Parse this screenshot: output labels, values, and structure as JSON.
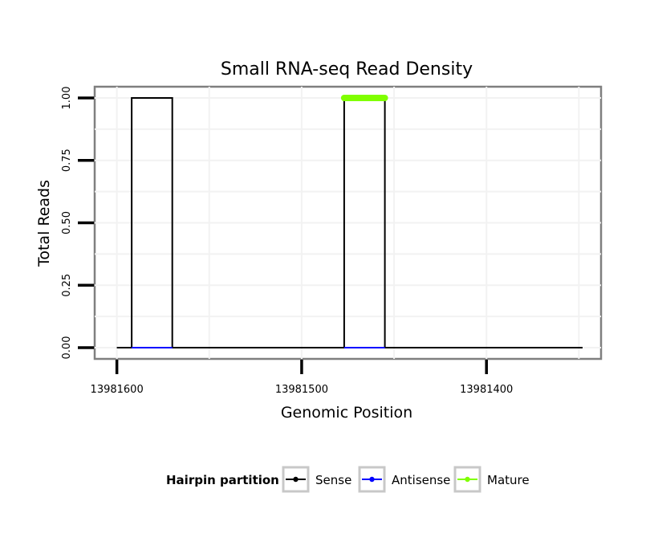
{
  "chart_data": {
    "type": "line",
    "title": "Small RNA-seq Read Density",
    "xlabel": "Genomic Position",
    "ylabel": "Total Reads",
    "x_reversed": true,
    "xlim": [
      13981612,
      13981338
    ],
    "ylim": [
      -0.045,
      1.045
    ],
    "x_ticks": [
      13981600,
      13981500,
      13981400
    ],
    "x_tick_labels": [
      "13981600",
      "13981500",
      "13981400"
    ],
    "y_ticks": [
      0,
      0.25,
      0.5,
      0.75,
      1.0
    ],
    "y_tick_labels": [
      "0.00",
      "0.25",
      "0.50",
      "0.75",
      "1.00"
    ],
    "grid": true,
    "legend_position": "bottom",
    "legend_title": "Hairpin partition",
    "series": [
      {
        "name": "Sense",
        "color": "#000000",
        "x": [
          13981600,
          13981592,
          13981592,
          13981570,
          13981570,
          13981477,
          13981477,
          13981455,
          13981455,
          13981348
        ],
        "y": [
          0,
          0,
          1,
          1,
          0,
          0,
          1,
          1,
          0,
          0
        ]
      },
      {
        "name": "Antisense",
        "color": "#0000ff",
        "x": [
          13981592,
          13981570,
          13981477,
          13981455
        ],
        "y": [
          0,
          0,
          0,
          0
        ],
        "segments": [
          [
            0,
            1
          ],
          [
            2,
            3
          ]
        ]
      },
      {
        "name": "Mature",
        "color": "#80ff00",
        "x": [
          13981477,
          13981455
        ],
        "y": [
          1,
          1
        ],
        "thick": true
      }
    ]
  }
}
